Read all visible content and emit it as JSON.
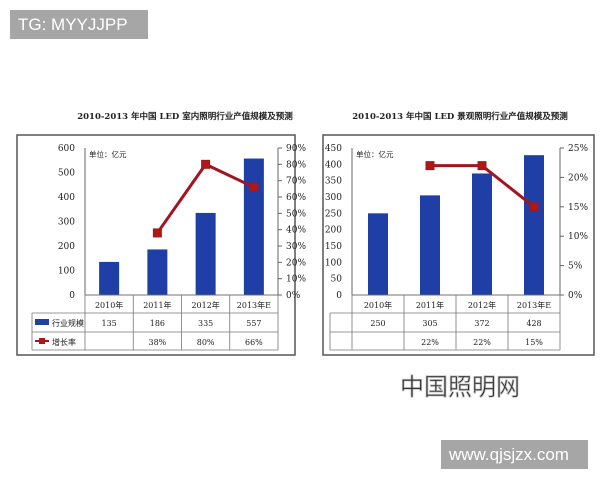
{
  "overlay": {
    "tg_label": "TG: MYYJJPP",
    "site_label": "www.qjsjzx.com",
    "watermark": "中国照明网"
  },
  "colors": {
    "bar": "#1f3fa6",
    "line": "#a01620",
    "marker": "#b01818"
  },
  "chart_data": [
    {
      "type": "bar+line",
      "title": "2010-2013 年中国 LED 室内照明行业产值规模及预测",
      "unit_label": "单位：亿元",
      "categories": [
        "2010年",
        "2011年",
        "2012年",
        "2013年E"
      ],
      "y_left": {
        "range": [
          0,
          600
        ],
        "ticks": [
          "0",
          "100",
          "200",
          "300",
          "400",
          "500",
          "600"
        ]
      },
      "y_right": {
        "range": [
          0,
          90
        ],
        "ticks": [
          "0%",
          "10%",
          "20%",
          "30%",
          "40%",
          "50%",
          "60%",
          "70%",
          "80%",
          "90%"
        ]
      },
      "series": [
        {
          "name": "行业规模",
          "type": "bar",
          "values": [
            135,
            186,
            335,
            557
          ],
          "labels": [
            "135",
            "186",
            "335",
            "557"
          ]
        },
        {
          "name": "增长率",
          "type": "line",
          "values": [
            null,
            38,
            80,
            66
          ],
          "labels": [
            "",
            "38%",
            "80%",
            "66%"
          ]
        }
      ],
      "grid": false,
      "legend": "table-bottom"
    },
    {
      "type": "bar+line",
      "title": "2010-2013 年中国 LED 景观照明行业产值规模及预测",
      "unit_label": "单位：亿元",
      "categories": [
        "2010年",
        "2011年",
        "2012年",
        "2013年E"
      ],
      "y_left": {
        "range": [
          0,
          450
        ],
        "ticks": [
          "0",
          "50",
          "100",
          "150",
          "200",
          "250",
          "300",
          "350",
          "400",
          "450"
        ]
      },
      "y_right": {
        "range": [
          0,
          25
        ],
        "ticks": [
          "0%",
          "5%",
          "10%",
          "15%",
          "20%",
          "25%"
        ]
      },
      "series": [
        {
          "type": "bar",
          "values": [
            250,
            305,
            372,
            428
          ],
          "labels": [
            "250",
            "305",
            "372",
            "428"
          ]
        },
        {
          "type": "line",
          "values": [
            null,
            22,
            22,
            15
          ],
          "labels": [
            "",
            "22%",
            "22%",
            "15%"
          ]
        }
      ],
      "grid": false,
      "legend": "table-bottom"
    }
  ]
}
